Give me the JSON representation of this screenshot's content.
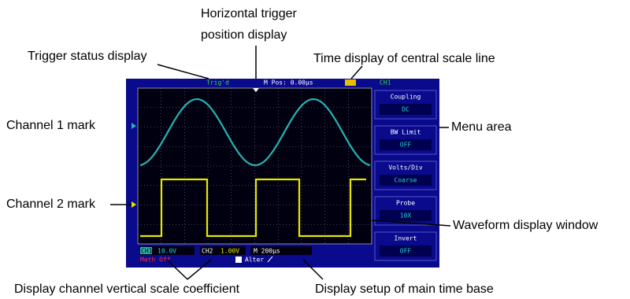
{
  "annotations": {
    "horizontal_trigger_line1": "Horizontal  trigger",
    "horizontal_trigger_line2": "position display",
    "trigger_status": "Trigger status display",
    "time_display": "Time display of central scale line",
    "channel1_mark": "Channel 1 mark",
    "menu_area": "Menu area",
    "channel2_mark": "Channel 2 mark",
    "waveform_window": "Waveform display window",
    "vertical_scale": "Display channel vertical scale coefficient",
    "time_base": "Display setup of main time base"
  },
  "screen": {
    "status": "Trig'd",
    "mpos": "M Pos: 0.00µs",
    "channel": "CH1",
    "menu": [
      {
        "label": "Coupling",
        "value": "DC"
      },
      {
        "label": "BW  Limit",
        "value": "OFF"
      },
      {
        "label": "Volts/Div",
        "value": "Coarse"
      },
      {
        "label": "Probe",
        "value": "10X"
      },
      {
        "label": "Invert",
        "value": "OFF"
      }
    ],
    "ch1_name": "CH1",
    "ch1_scale": "10.0V",
    "ch2_name": "CH2",
    "ch2_scale": "1.00V",
    "timebase": "M 200µs",
    "math": "Math  Off",
    "trigger": "Alter"
  }
}
